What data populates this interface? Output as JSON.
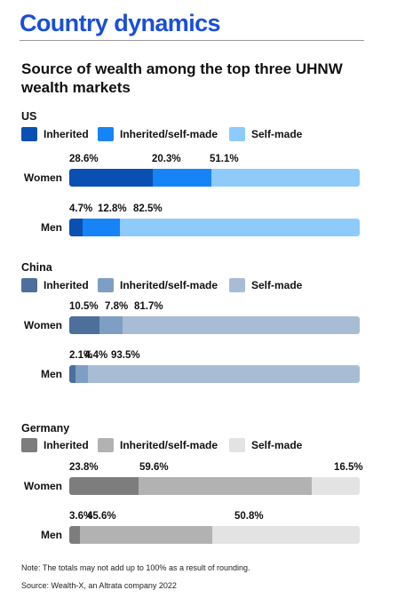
{
  "header": {
    "page_title": "Country dynamics",
    "chart_title": "Source of wealth among the top three UHNW wealth markets"
  },
  "legend_labels": [
    "Inherited",
    "Inherited/self-made",
    "Self-made"
  ],
  "chart_data": {
    "type": "bar",
    "orientation": "horizontal",
    "stacked": true,
    "normalized": true,
    "title": "Source of wealth among the top three UHNW wealth markets",
    "groups": [
      {
        "country": "US",
        "colors": [
          "#0a4fb2",
          "#1684f7",
          "#8ecbfb"
        ],
        "rows": [
          {
            "label": "Women",
            "values": [
              28.6,
              20.3,
              51.1
            ],
            "labels": [
              "28.6%",
              "20.3%",
              "51.1%"
            ]
          },
          {
            "label": "Men",
            "values": [
              4.7,
              12.8,
              82.5
            ],
            "labels": [
              "4.7%",
              "12.8%",
              "82.5%"
            ]
          }
        ]
      },
      {
        "country": "China",
        "colors": [
          "#4c6f9c",
          "#7f9ec4",
          "#a8bcd6"
        ],
        "rows": [
          {
            "label": "Women",
            "values": [
              10.5,
              7.8,
              81.7
            ],
            "labels": [
              "10.5%",
              "7.8%",
              "81.7%"
            ]
          },
          {
            "label": "Men",
            "values": [
              2.1,
              4.4,
              93.5
            ],
            "labels": [
              "2.1%",
              "4.4%",
              "93.5%"
            ]
          }
        ]
      },
      {
        "country": "Germany",
        "colors": [
          "#7d7d7d",
          "#b2b2b2",
          "#e3e3e3"
        ],
        "rows": [
          {
            "label": "Women",
            "values": [
              23.8,
              59.6,
              16.5
            ],
            "labels": [
              "23.8%",
              "59.6%",
              "16.5%"
            ]
          },
          {
            "label": "Men",
            "values": [
              3.6,
              45.6,
              50.8
            ],
            "labels": [
              "3.6%",
              "45.6%",
              "50.8%"
            ]
          }
        ]
      }
    ],
    "series": [
      "Inherited",
      "Inherited/self-made",
      "Self-made"
    ],
    "xlim": [
      0,
      100
    ],
    "grid": false
  },
  "footer": {
    "note": "Note: The totals may not add up to 100% as a result of rounding.",
    "source": "Source: Wealth-X, an Altrata company 2022"
  }
}
